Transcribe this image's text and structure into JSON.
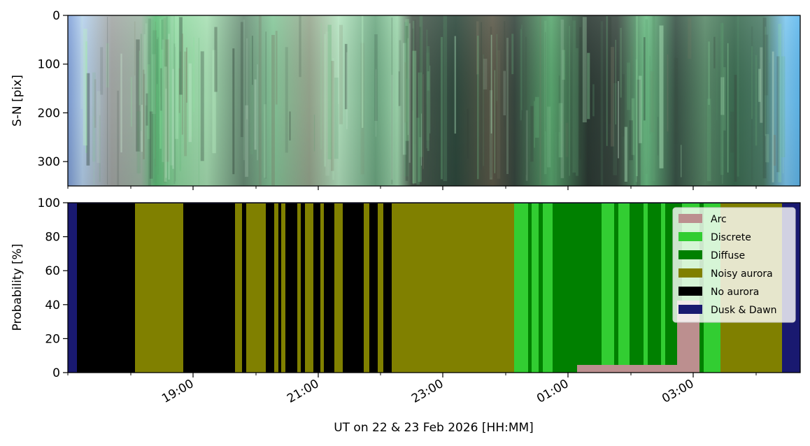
{
  "chart_data": [
    {
      "type": "heatmap",
      "ylabel": "S-N [pix]",
      "yticks": [
        "0",
        "100",
        "200",
        "300"
      ],
      "ylim": [
        350,
        0
      ],
      "description_colors": [
        "#a8c8f0",
        "#9aa0a0",
        "#6fcf8a",
        "#3c4a44",
        "#7ec8f0"
      ]
    },
    {
      "type": "area",
      "stacked": true,
      "ylabel": "Probability [%]",
      "yticks": [
        "0",
        "20",
        "40",
        "60",
        "80",
        "100"
      ],
      "ylim": [
        0,
        100
      ],
      "xlabel": "UT on 22 & 23 Feb 2026 [HH:MM]",
      "xticks": [
        "19:00",
        "21:00",
        "23:00",
        "01:00",
        "03:00"
      ],
      "legend_position": "top-right",
      "series": [
        {
          "name": "Arc",
          "color": "#bc8f8f"
        },
        {
          "name": "Discrete",
          "color": "#32cd32"
        },
        {
          "name": "Diffuse",
          "color": "#008000"
        },
        {
          "name": "Noisy aurora",
          "color": "#808000"
        },
        {
          "name": "No aurora",
          "color": "#000000"
        },
        {
          "name": "Dusk & Dawn",
          "color": "#191970"
        }
      ]
    }
  ]
}
